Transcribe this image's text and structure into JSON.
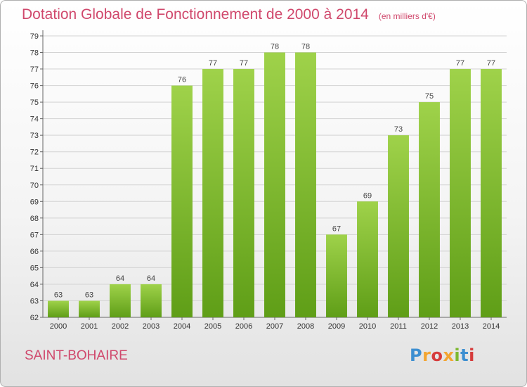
{
  "title": "Dotation Globale de Fonctionnement de 2000 à 2014",
  "subtitle": "(en milliers d'€)",
  "commune": "SAINT-BOHAIRE",
  "logo": {
    "letters": [
      "P",
      "r",
      "o",
      "x",
      "i",
      "t",
      "i"
    ],
    "colors": [
      "#3d8fd1",
      "#f3a531",
      "#d63b3b",
      "#f3a531",
      "#7cb82f",
      "#3d8fd1",
      "#d63b3b"
    ]
  },
  "colors": {
    "title": "#d0486c",
    "bar_light": "#9fd24a",
    "bar_dark": "#5f9e17"
  },
  "chart_data": {
    "type": "bar",
    "categories": [
      "2000",
      "2001",
      "2002",
      "2003",
      "2004",
      "2005",
      "2006",
      "2007",
      "2008",
      "2009",
      "2010",
      "2011",
      "2012",
      "2013",
      "2014"
    ],
    "values": [
      63,
      63,
      64,
      64,
      76,
      77,
      77,
      78,
      78,
      67,
      69,
      73,
      75,
      77,
      77
    ],
    "ylim": [
      62,
      79
    ],
    "yticks": [
      62,
      63,
      64,
      65,
      66,
      67,
      68,
      69,
      70,
      71,
      72,
      73,
      74,
      75,
      76,
      77,
      78,
      79
    ],
    "grid": true,
    "data_labels": true
  }
}
